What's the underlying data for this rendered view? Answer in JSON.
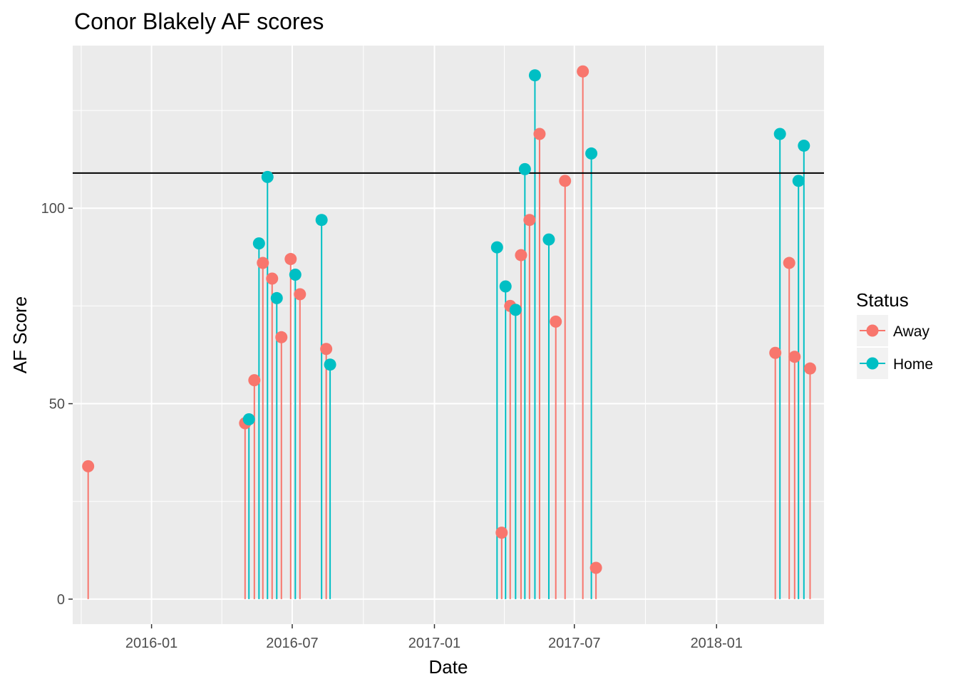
{
  "chart_data": {
    "type": "scatter",
    "style": "lollipop",
    "title": "Conor Blakely AF scores",
    "xlabel": "Date",
    "ylabel": "AF Score",
    "x_type": "date",
    "xlim": [
      "2015-09-21",
      "2018-05-20"
    ],
    "ylim": [
      -6.4,
      141.6
    ],
    "x_ticks": [
      "2016-01-01",
      "2016-07-01",
      "2017-01-01",
      "2017-07-01",
      "2018-01-01"
    ],
    "x_tick_labels": [
      "2016-01",
      "2016-07",
      "2017-01",
      "2017-07",
      "2018-01"
    ],
    "y_ticks": [
      0,
      50,
      100
    ],
    "y_tick_labels": [
      "0",
      "50",
      "100"
    ],
    "reference_line": {
      "y": 109
    },
    "grid": true,
    "legend": {
      "title": "Status",
      "position": "right"
    },
    "series": [
      {
        "name": "Away",
        "color": "#F8766D",
        "points": [
          {
            "x": "2015-10-11",
            "y": 34
          },
          {
            "x": "2016-05-01",
            "y": 45
          },
          {
            "x": "2016-05-13",
            "y": 56
          },
          {
            "x": "2016-05-24",
            "y": 86
          },
          {
            "x": "2016-06-05",
            "y": 82
          },
          {
            "x": "2016-06-17",
            "y": 67
          },
          {
            "x": "2016-06-29",
            "y": 87
          },
          {
            "x": "2016-07-11",
            "y": 78
          },
          {
            "x": "2016-08-14",
            "y": 64
          },
          {
            "x": "2017-03-29",
            "y": 17
          },
          {
            "x": "2017-04-09",
            "y": 75
          },
          {
            "x": "2017-04-23",
            "y": 88
          },
          {
            "x": "2017-05-04",
            "y": 97
          },
          {
            "x": "2017-05-17",
            "y": 119
          },
          {
            "x": "2017-06-07",
            "y": 71
          },
          {
            "x": "2017-06-19",
            "y": 107
          },
          {
            "x": "2017-07-12",
            "y": 135
          },
          {
            "x": "2017-07-29",
            "y": 8
          },
          {
            "x": "2018-03-18",
            "y": 63
          },
          {
            "x": "2018-04-05",
            "y": 86
          },
          {
            "x": "2018-04-12",
            "y": 62
          },
          {
            "x": "2018-05-02",
            "y": 59
          }
        ]
      },
      {
        "name": "Home",
        "color": "#00BFC4",
        "points": [
          {
            "x": "2016-05-06",
            "y": 46
          },
          {
            "x": "2016-05-19",
            "y": 91
          },
          {
            "x": "2016-05-30",
            "y": 108
          },
          {
            "x": "2016-06-11",
            "y": 77
          },
          {
            "x": "2016-07-05",
            "y": 83
          },
          {
            "x": "2016-08-08",
            "y": 97
          },
          {
            "x": "2016-08-19",
            "y": 60
          },
          {
            "x": "2017-03-23",
            "y": 90
          },
          {
            "x": "2017-04-03",
            "y": 80
          },
          {
            "x": "2017-04-16",
            "y": 74
          },
          {
            "x": "2017-04-28",
            "y": 110
          },
          {
            "x": "2017-05-11",
            "y": 134
          },
          {
            "x": "2017-05-29",
            "y": 92
          },
          {
            "x": "2017-07-23",
            "y": 114
          },
          {
            "x": "2018-03-24",
            "y": 119
          },
          {
            "x": "2018-04-17",
            "y": 107
          },
          {
            "x": "2018-04-24",
            "y": 116
          }
        ]
      }
    ]
  }
}
